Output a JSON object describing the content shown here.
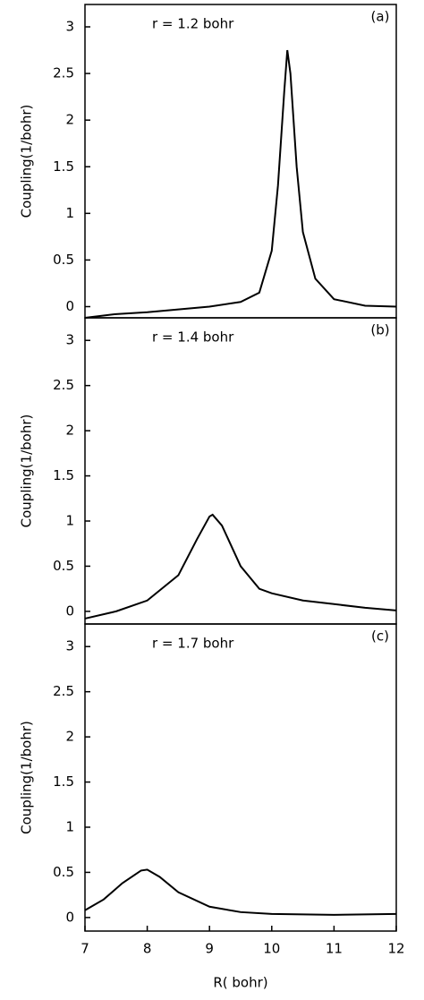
{
  "chart_data": [
    {
      "type": "line",
      "annotation": "r = 1.2 bohr",
      "panel_label": "(a)",
      "ylabel": "Coupling(1/bohr)",
      "color": "#000000",
      "x": [
        7,
        7.5,
        8,
        8.5,
        9,
        9.5,
        9.8,
        10.0,
        10.1,
        10.2,
        10.25,
        10.3,
        10.4,
        10.5,
        10.7,
        11,
        11.5,
        12
      ],
      "values": [
        -0.12,
        -0.08,
        -0.06,
        -0.03,
        0.0,
        0.05,
        0.15,
        0.6,
        1.3,
        2.3,
        2.75,
        2.5,
        1.5,
        0.8,
        0.3,
        0.08,
        0.01,
        0.0
      ],
      "xlim": [
        7,
        12
      ],
      "ylim": [
        -0.12,
        3.24
      ],
      "yticks": [
        0,
        0.5,
        1,
        1.5,
        2,
        2.5,
        3
      ]
    },
    {
      "type": "line",
      "annotation": "r = 1.4 bohr",
      "panel_label": "(b)",
      "ylabel": "Coupling(1/bohr)",
      "color": "#000000",
      "x": [
        7,
        7.5,
        8,
        8.5,
        8.8,
        9.0,
        9.05,
        9.2,
        9.5,
        9.8,
        10,
        10.5,
        11,
        11.5,
        12
      ],
      "values": [
        -0.08,
        0.0,
        0.12,
        0.4,
        0.8,
        1.05,
        1.07,
        0.95,
        0.5,
        0.25,
        0.2,
        0.12,
        0.08,
        0.04,
        0.01
      ],
      "xlim": [
        7,
        12
      ],
      "ylim": [
        -0.14,
        3.25
      ],
      "yticks": [
        0,
        0.5,
        1,
        1.5,
        2,
        2.5,
        3
      ]
    },
    {
      "type": "line",
      "annotation": "r = 1.7 bohr",
      "panel_label": "(c)",
      "ylabel": "Coupling(1/bohr)",
      "xlabel": "R( bohr)",
      "color": "#000000",
      "x": [
        7,
        7.3,
        7.6,
        7.9,
        8.0,
        8.2,
        8.5,
        9,
        9.5,
        10,
        11,
        12
      ],
      "values": [
        0.08,
        0.2,
        0.38,
        0.52,
        0.53,
        0.45,
        0.28,
        0.12,
        0.06,
        0.04,
        0.03,
        0.04
      ],
      "xlim": [
        7,
        12
      ],
      "ylim": [
        -0.15,
        3.25
      ],
      "yticks": [
        0,
        0.5,
        1,
        1.5,
        2,
        2.5,
        3
      ],
      "xticks": [
        7,
        8,
        9,
        10,
        11,
        12
      ]
    }
  ]
}
